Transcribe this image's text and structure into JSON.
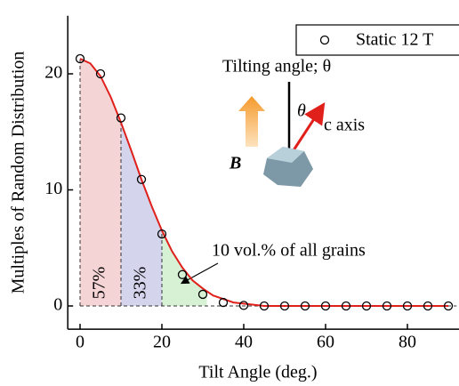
{
  "chart_data": {
    "type": "scatter",
    "x_label": "Tilt Angle (deg.)",
    "y_label": "Multiples of Random Distribution",
    "xlim": [
      -3,
      92
    ],
    "ylim": [
      -2,
      25
    ],
    "xticks": [
      0,
      20,
      40,
      60,
      80
    ],
    "yticks": [
      0,
      10,
      20
    ],
    "legend": "upper right",
    "series": [
      {
        "name": "Static 12 T",
        "color": "#000000",
        "x": [
          0,
          5,
          10,
          15,
          20,
          25,
          30,
          35,
          40,
          45,
          50,
          55,
          60,
          65,
          70,
          75,
          80,
          85,
          90
        ],
        "values": [
          21.3,
          20.0,
          16.2,
          10.9,
          6.2,
          2.7,
          1.0,
          0.3,
          0.05,
          0,
          0,
          0,
          0,
          0,
          0,
          0,
          0,
          0,
          0
        ]
      }
    ],
    "fit": {
      "color": "#e0201b",
      "x": [
        0,
        2.5,
        5,
        7.5,
        10,
        12.5,
        15,
        17.5,
        20,
        22.5,
        25,
        27.5,
        30,
        32.5,
        35,
        37.5,
        40,
        45,
        50,
        90
      ],
      "values": [
        21.3,
        20.9,
        19.8,
        18.0,
        15.8,
        13.4,
        10.9,
        8.6,
        6.5,
        4.7,
        3.3,
        2.2,
        1.5,
        0.9,
        0.6,
        0.3,
        0.2,
        0,
        0,
        0
      ]
    },
    "regions": {
      "bounds": [
        [
          0,
          10
        ],
        [
          10,
          20
        ],
        [
          20,
          31
        ]
      ],
      "colors": [
        "#f2c9cc",
        "#c9cbe8",
        "#cdeec9"
      ],
      "values": [
        57,
        33,
        10
      ],
      "value_labels": [
        "57%",
        "33%",
        "10 vol.% of all grains"
      ]
    },
    "inset": {
      "field": "B",
      "title": "Tilting angle; θ",
      "angle": "θ",
      "axis": "c axis"
    }
  }
}
